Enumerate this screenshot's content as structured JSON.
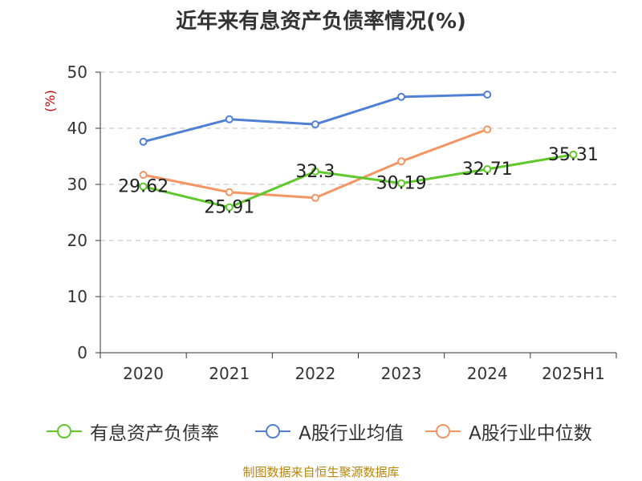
{
  "chart_data": {
    "type": "line",
    "title": "近年来有息资产负债率情况(%)",
    "ylabel": "(%)",
    "xlabel": "",
    "categories": [
      "2020",
      "2021",
      "2022",
      "2023",
      "2024",
      "2025H1"
    ],
    "ylim": [
      0,
      50
    ],
    "yticks": [
      0,
      10,
      20,
      30,
      40,
      50
    ],
    "grid": true,
    "legend_position": "bottom",
    "series": [
      {
        "name": "有息资产负债率",
        "color": "#5fc82a",
        "values": [
          29.62,
          25.91,
          32.3,
          30.19,
          32.71,
          35.31
        ],
        "labels": [
          "29.62",
          "25.91",
          "32.3",
          "30.19",
          "32.71",
          "35.31"
        ]
      },
      {
        "name": "A股行业均值",
        "color": "#4f80d6",
        "values": [
          37.6,
          41.6,
          40.7,
          45.6,
          46.0,
          null
        ]
      },
      {
        "name": "A股行业中位数",
        "color": "#f59562",
        "values": [
          31.7,
          28.6,
          27.6,
          34.1,
          39.8,
          null
        ]
      }
    ]
  },
  "source": "制图数据来自恒生聚源数据库"
}
